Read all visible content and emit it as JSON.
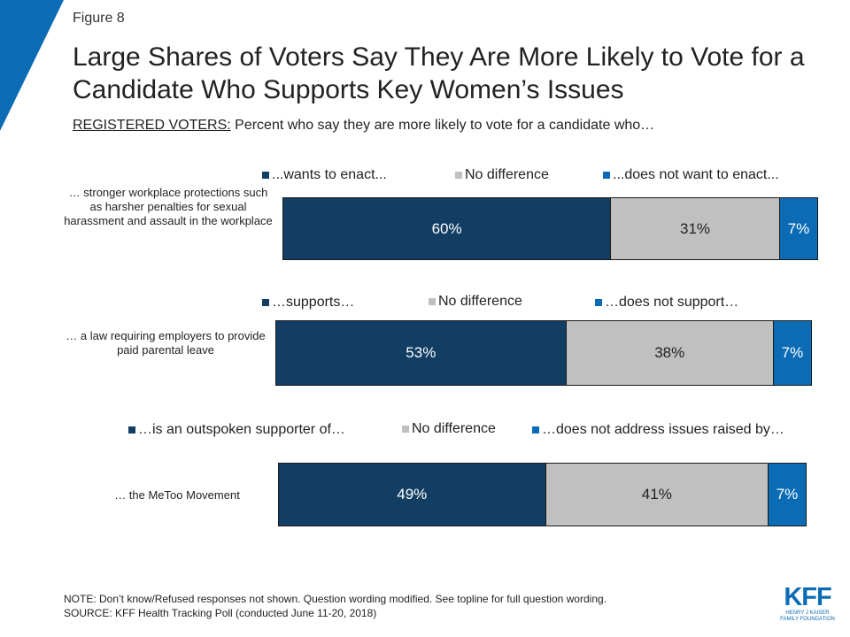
{
  "header": {
    "figure_label": "Figure 8",
    "title": "Large Shares of Voters Say They Are More Likely to Vote for a Candidate Who Supports Key Women’s Issues",
    "subtitle_prefix": "REGISTERED VOTERS:",
    "subtitle_rest": " Percent who say they are more likely to vote for a candidate who…"
  },
  "colors": {
    "dark": "#123e63",
    "gray": "#c0c0c0",
    "blue": "#0b6cb5"
  },
  "chart_data": [
    {
      "type": "bar",
      "orientation": "horizontal-stacked",
      "category": "… stronger  workplace protections  such as harsher penalties  for sexual harassment  and assault  in the workplace",
      "series": [
        {
          "name": "...wants to enact...",
          "value": 60,
          "label": "60%"
        },
        {
          "name": "No difference",
          "value": 31,
          "label": "31%"
        },
        {
          "name": "...does not want to enact...",
          "value": 7,
          "label": "7%"
        }
      ]
    },
    {
      "type": "bar",
      "orientation": "horizontal-stacked",
      "category": "… a law requiring employers to provide  paid parental leave",
      "series": [
        {
          "name": "…supports…",
          "value": 53,
          "label": "53%"
        },
        {
          "name": "No difference",
          "value": 38,
          "label": "38%"
        },
        {
          "name": "…does not support…",
          "value": 7,
          "label": "7%"
        }
      ]
    },
    {
      "type": "bar",
      "orientation": "horizontal-stacked",
      "category": "… the MeToo  Movement",
      "series": [
        {
          "name": "…is an outspoken supporter of…",
          "value": 49,
          "label": "49%"
        },
        {
          "name": "No difference",
          "value": 41,
          "label": "41%"
        },
        {
          "name": "…does not address issues raised by…",
          "value": 7,
          "label": "7%"
        }
      ]
    }
  ],
  "footer": {
    "note": "NOTE: Don’t know/Refused responses not shown. Question wording modified. See topline for full question wording.",
    "source": "SOURCE: KFF Health Tracking Poll (conducted June 11-20, 2018)"
  },
  "logo": {
    "mark": "KFF",
    "line1": "HENRY J KAISER",
    "line2": "FAMILY FOUNDATION"
  }
}
